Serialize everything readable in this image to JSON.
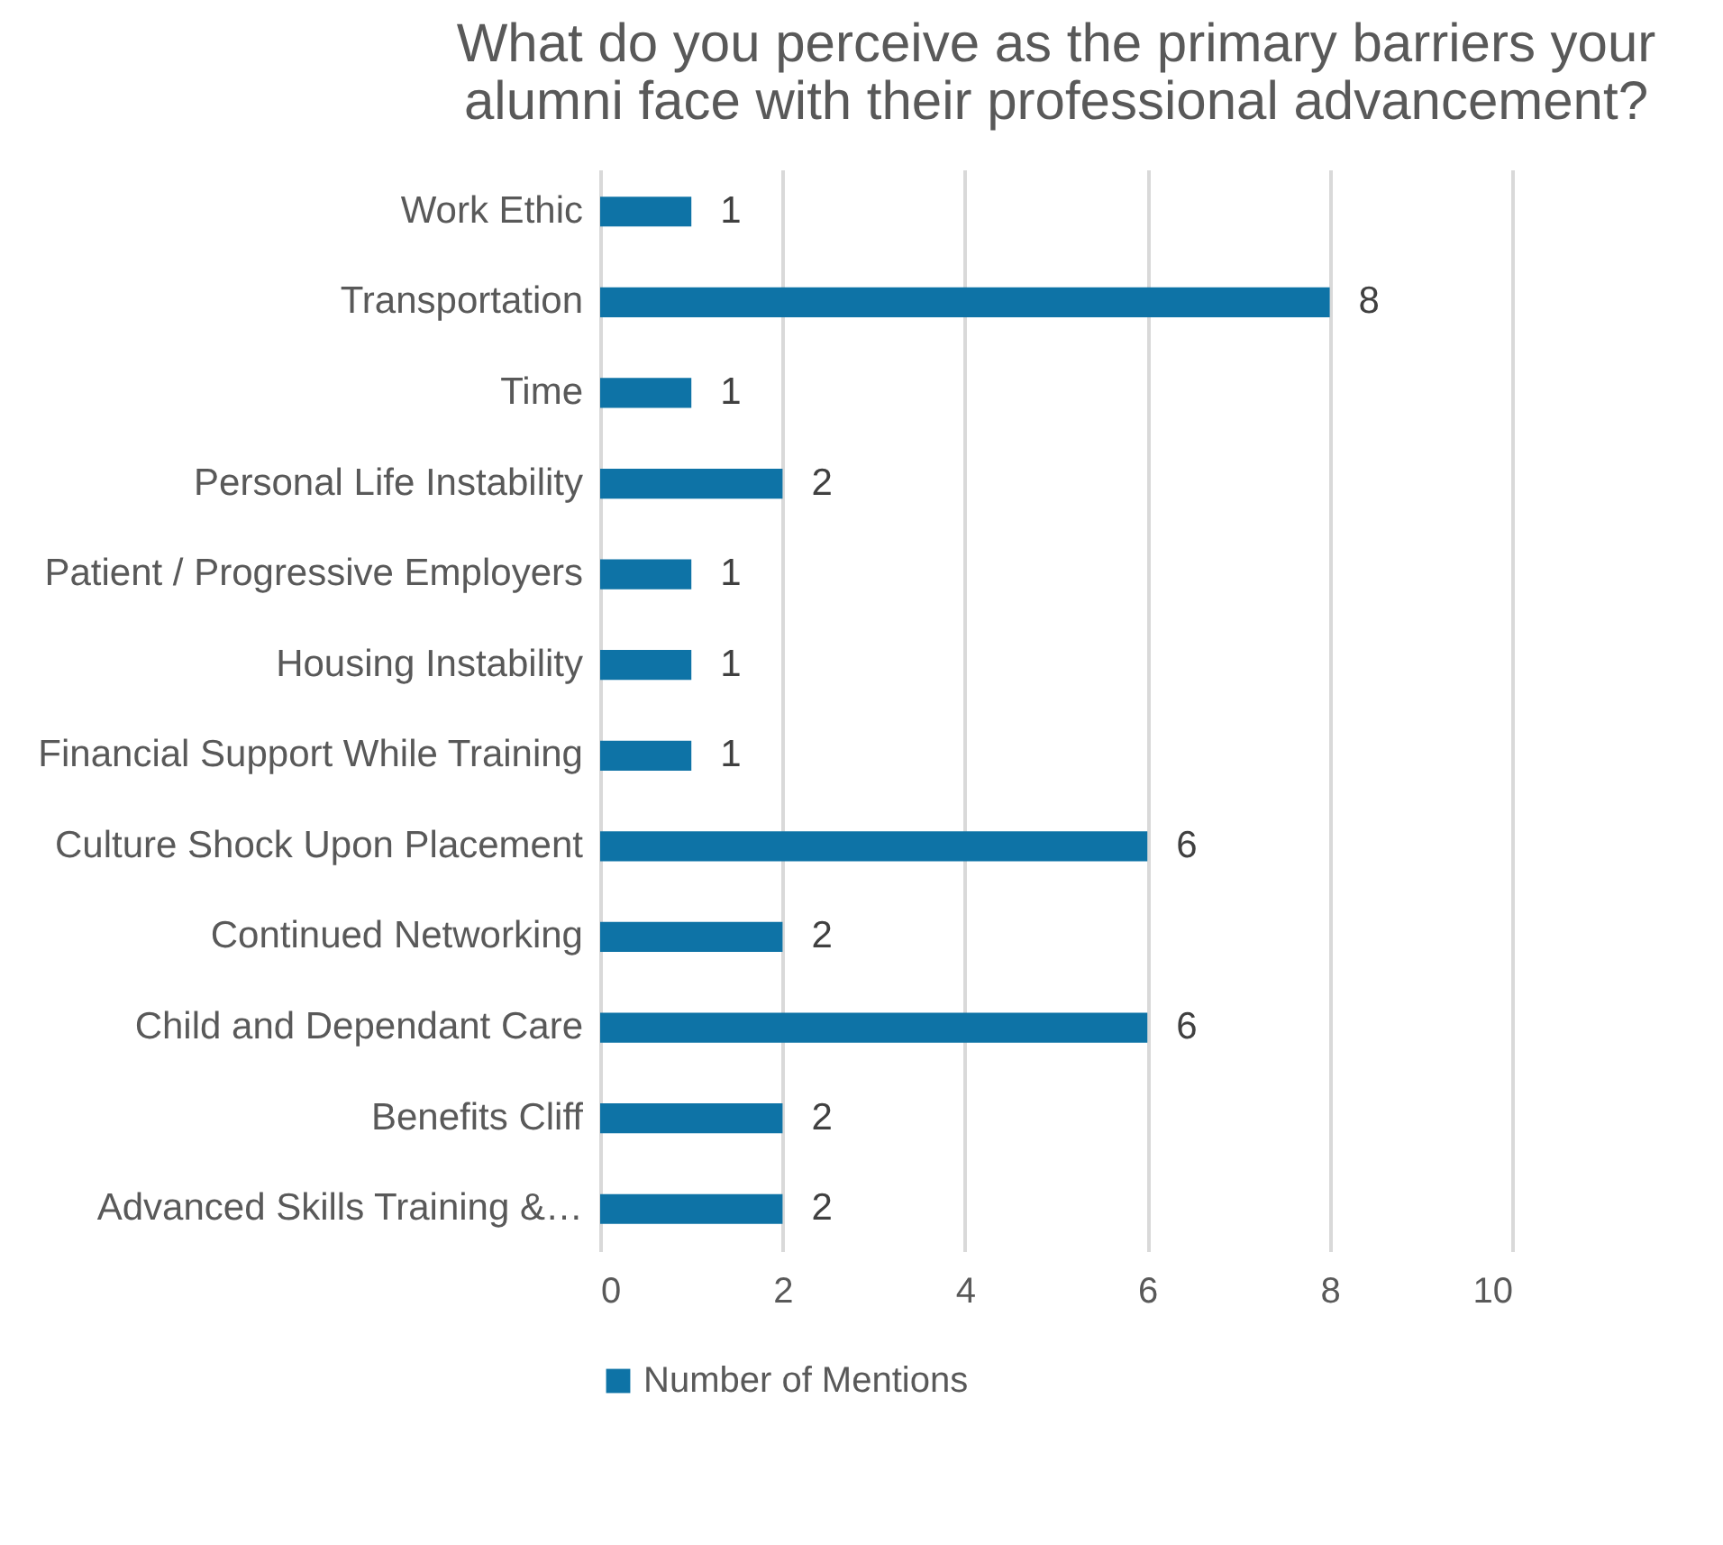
{
  "chart_data": {
    "type": "bar",
    "orientation": "horizontal",
    "title": "What do you perceive as the primary barriers your alumni face with their professional advancement?",
    "categories": [
      "Work Ethic",
      "Transportation",
      "Time",
      "Personal Life Instability",
      "Patient / Progressive Employers",
      "Housing Instability",
      "Financial Support While Training",
      "Culture Shock Upon Placement",
      "Continued Networking",
      "Child and Dependant Care",
      "Benefits Cliff",
      "Advanced Skills Training &…"
    ],
    "series": [
      {
        "name": "Number of Mentions",
        "color": "#0e73a6",
        "values": [
          1,
          8,
          1,
          2,
          1,
          1,
          1,
          6,
          2,
          6,
          2,
          2
        ]
      }
    ],
    "xlim": [
      0,
      10
    ],
    "xticks": [
      0,
      2,
      4,
      6,
      8,
      10
    ],
    "grid": "x",
    "legend": "bottom",
    "data_labels": true
  }
}
